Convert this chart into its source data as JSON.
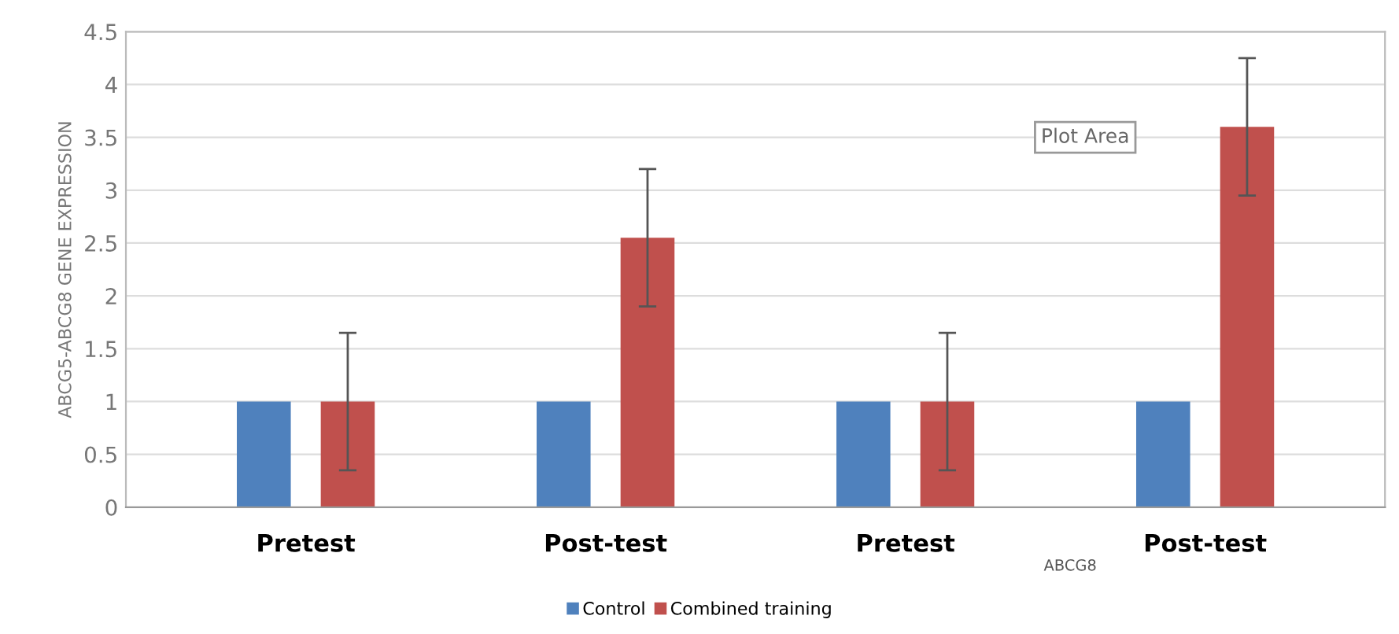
{
  "chart_data": {
    "type": "bar",
    "categories": [
      "Pretest",
      "Post-test",
      "Pretest",
      "Post-test"
    ],
    "ylabel": "ABCG5-ABCG8 GENE EXPRESSION",
    "xlabel": "ABCG8",
    "annotations": [
      "Plot Area"
    ],
    "series": [
      {
        "name": "Control",
        "color": "#4f81bd",
        "values": [
          1,
          1,
          1,
          1
        ]
      },
      {
        "name": "Combined training",
        "color": "#c0504d",
        "values": [
          1,
          2.55,
          1,
          3.6
        ],
        "errors": [
          0.65,
          0.65,
          0.65,
          0.65
        ]
      }
    ],
    "ylim": [
      0,
      4.5
    ],
    "yticks": [
      0,
      0.5,
      1,
      1.5,
      2,
      2.5,
      3,
      3.5,
      4,
      4.5
    ],
    "grid": "y",
    "legend": "bottom"
  }
}
